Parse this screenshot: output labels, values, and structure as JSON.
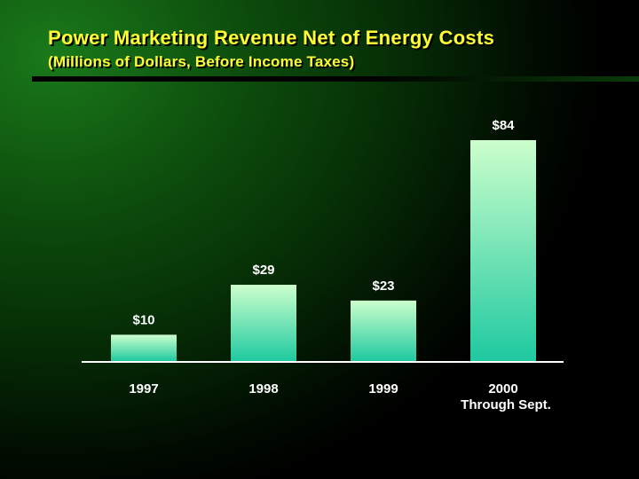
{
  "title": "Power Marketing Revenue Net of Energy Costs",
  "subtitle": "(Millions of Dollars, Before Income Taxes)",
  "colors": {
    "title": "#ffff33",
    "bar_top": "#ccffcc",
    "bar_bottom": "#1fc9a0",
    "axis": "#ffffff",
    "background": "#0e520e"
  },
  "chart_data": {
    "type": "bar",
    "title": "Power Marketing Revenue Net of Energy Costs",
    "subtitle": "(Millions of Dollars, Before Income Taxes)",
    "categories": [
      "1997",
      "1998",
      "1999",
      "2000\nThrough Sept."
    ],
    "values": [
      10,
      29,
      23,
      84
    ],
    "value_labels": [
      "$10",
      "$29",
      "$23",
      "$84"
    ],
    "xlabel": "",
    "ylabel": "",
    "ylim": [
      0,
      84
    ],
    "grid": false,
    "legend": "none"
  }
}
